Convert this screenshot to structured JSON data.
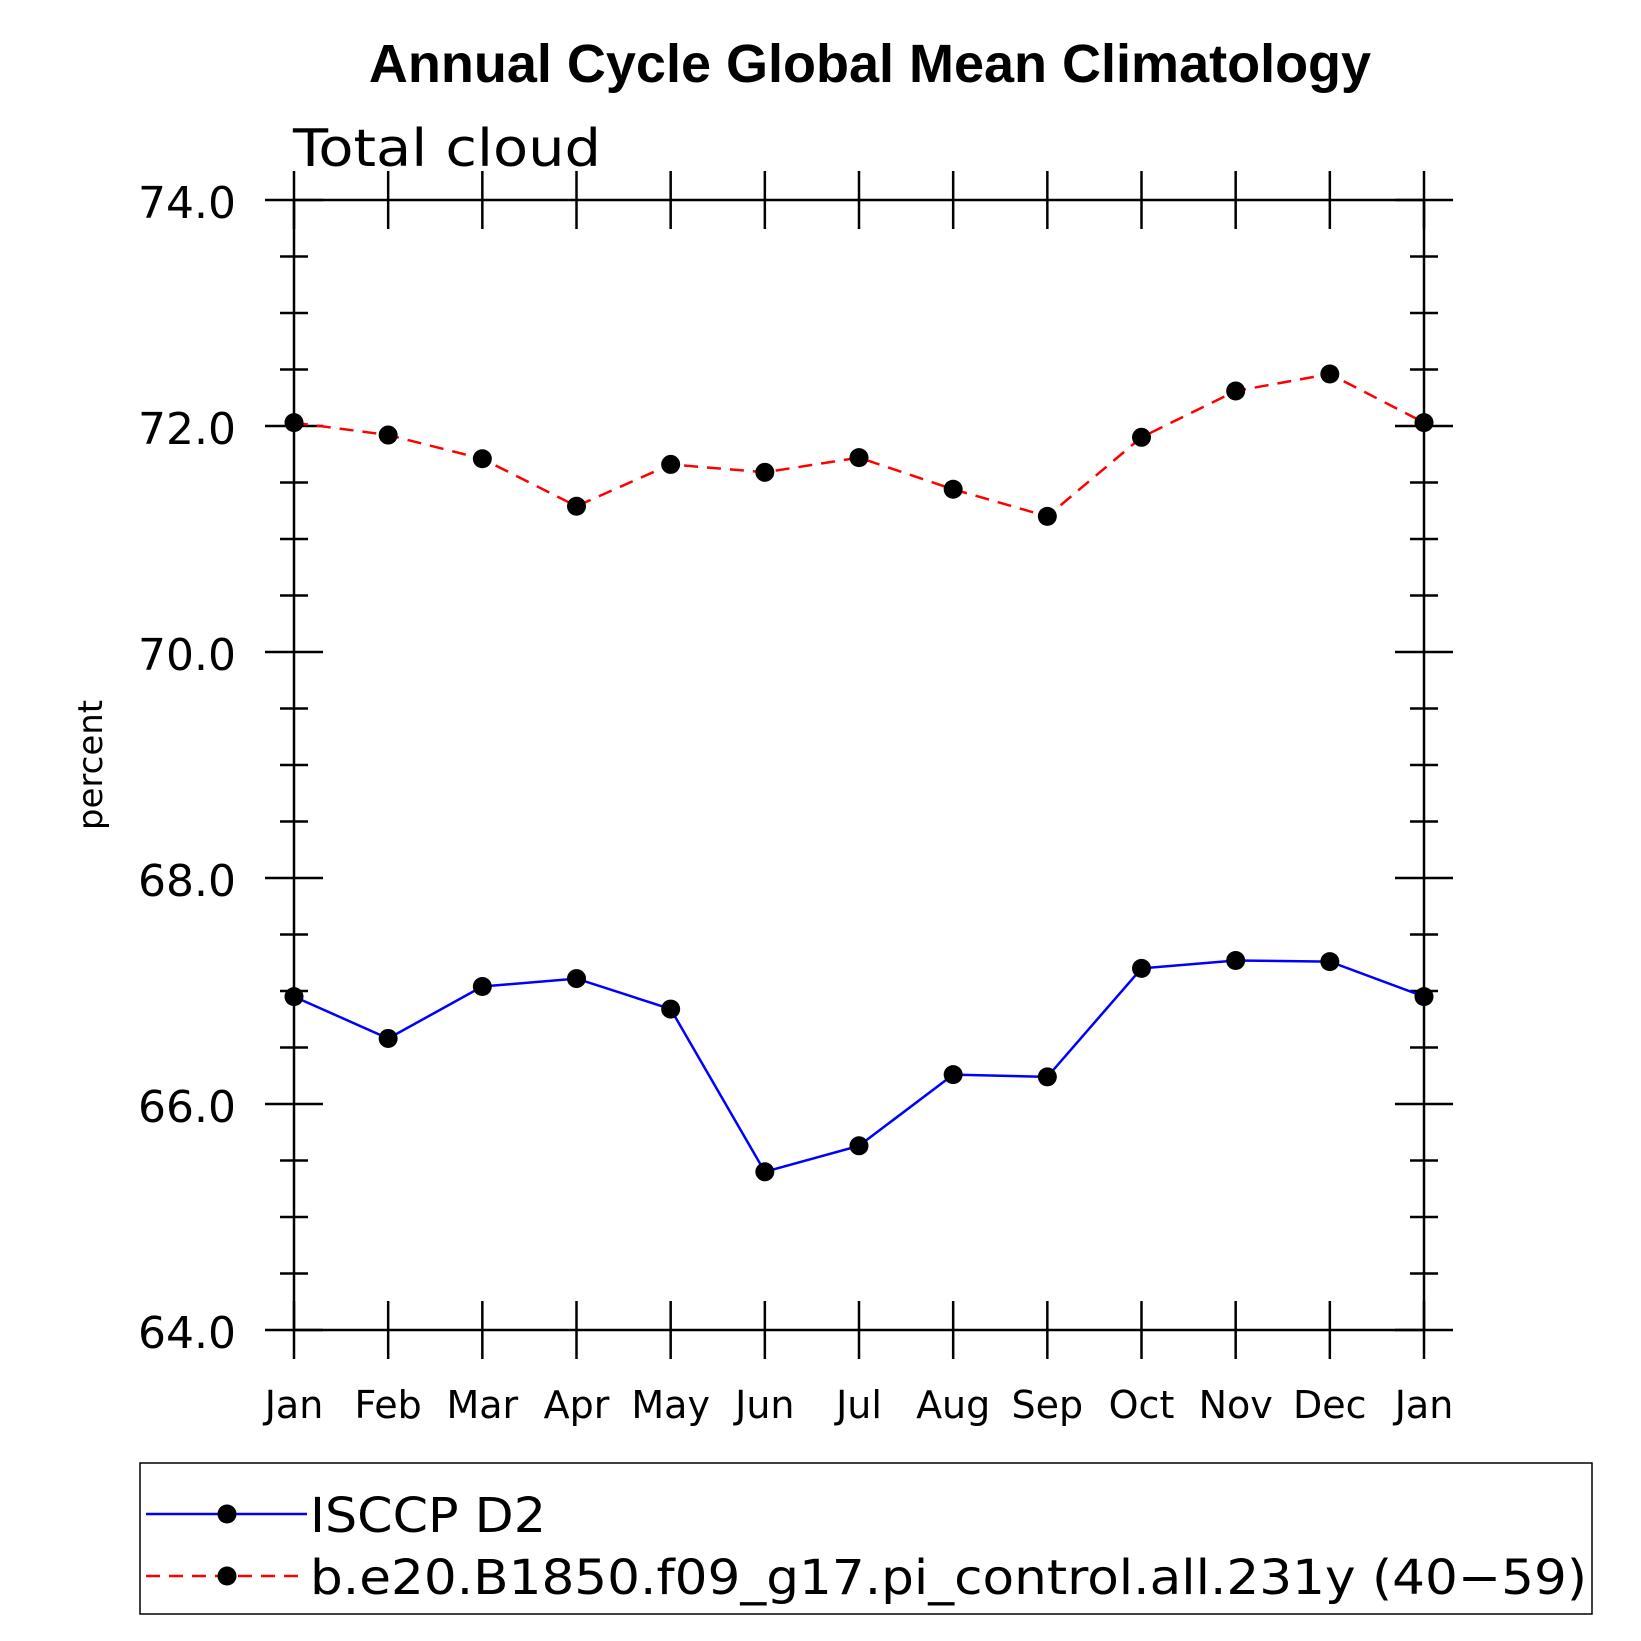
{
  "chart_data": {
    "type": "line",
    "title": "Annual Cycle Global Mean Climatology",
    "subtitle": "Total cloud",
    "ylabel": "percent",
    "xlabel": "",
    "categories": [
      "Jan",
      "Feb",
      "Mar",
      "Apr",
      "May",
      "Jun",
      "Jul",
      "Aug",
      "Sep",
      "Oct",
      "Nov",
      "Dec",
      "Jan"
    ],
    "ylim": [
      64.0,
      74.0
    ],
    "yticks": [
      "64.0",
      "66.0",
      "68.0",
      "70.0",
      "72.0",
      "74.0"
    ],
    "grid": false,
    "legend_position": "bottom",
    "series": [
      {
        "name": "ISCCP D2",
        "color": "#0000ff",
        "dash": "solid",
        "marker": "filled-circle",
        "values": [
          66.95,
          66.58,
          67.04,
          67.11,
          66.84,
          65.4,
          65.63,
          66.26,
          66.24,
          67.2,
          67.27,
          67.26,
          66.95
        ]
      },
      {
        "name": "b.e20.B1850.f09_g17.pi_control.all.231y (40−59)",
        "color": "#ff0000",
        "dash": "dashed",
        "marker": "filled-circle",
        "values": [
          72.03,
          71.92,
          71.71,
          71.29,
          71.66,
          71.59,
          71.72,
          71.44,
          71.2,
          71.9,
          72.31,
          72.46,
          72.03
        ]
      }
    ]
  }
}
